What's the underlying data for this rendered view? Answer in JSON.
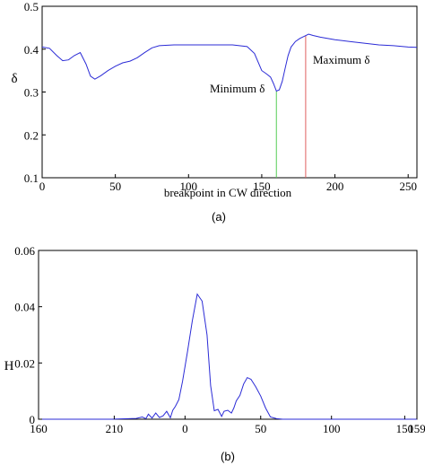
{
  "chart_data": [
    {
      "type": "line",
      "caption": "(a)",
      "xlabel": "breakpoint in CW direction",
      "ylabel": "δ",
      "xlim": [
        0,
        256
      ],
      "ylim": [
        0.1,
        0.5
      ],
      "xticks": [
        "0",
        "50",
        "100",
        "150",
        "200",
        "250"
      ],
      "xtick_values": [
        0,
        50,
        100,
        150,
        200,
        250
      ],
      "yticks": [
        "0.1",
        "0.2",
        "0.3",
        "0.4",
        "0.5"
      ],
      "ytick_values": [
        0.1,
        0.2,
        0.3,
        0.4,
        0.5
      ],
      "grid": false,
      "series": [
        {
          "color": "#2b2bd6",
          "x": [
            0,
            5,
            10,
            14,
            18,
            22,
            26,
            30,
            33,
            36,
            40,
            45,
            50,
            55,
            60,
            65,
            70,
            75,
            80,
            90,
            100,
            110,
            120,
            130,
            140,
            145,
            150,
            153,
            156,
            158,
            160,
            162,
            164,
            166,
            168,
            170,
            173,
            176,
            179,
            182,
            185,
            190,
            200,
            210,
            220,
            230,
            240,
            250,
            256
          ],
          "y": [
            0.405,
            0.402,
            0.385,
            0.373,
            0.375,
            0.385,
            0.392,
            0.365,
            0.337,
            0.33,
            0.338,
            0.35,
            0.36,
            0.368,
            0.372,
            0.38,
            0.392,
            0.403,
            0.408,
            0.41,
            0.41,
            0.41,
            0.41,
            0.41,
            0.406,
            0.39,
            0.35,
            0.343,
            0.335,
            0.32,
            0.302,
            0.305,
            0.325,
            0.355,
            0.385,
            0.405,
            0.418,
            0.425,
            0.43,
            0.435,
            0.432,
            0.428,
            0.422,
            0.418,
            0.414,
            0.41,
            0.408,
            0.405,
            0.404
          ]
        }
      ],
      "markers": [
        {
          "x": 160,
          "color": "#55cc55",
          "label": "Minimum δ"
        },
        {
          "x": 180,
          "color": "#e06060",
          "label": "Maximum δ"
        }
      ]
    },
    {
      "type": "line",
      "caption": "(b)",
      "xlabel": "",
      "ylabel": "H",
      "ylim": [
        0,
        0.06
      ],
      "xticks": [
        "160",
        "210",
        "0",
        "50",
        "100",
        "150",
        "159"
      ],
      "yticks": [
        "0",
        "0.02",
        "0.04",
        "0.06"
      ],
      "ytick_values": [
        0,
        0.02,
        0.04,
        0.06
      ],
      "grid": false,
      "series": [
        {
          "color": "#2b2bd6",
          "x": [
            0,
            20,
            40,
            60,
            80,
            85,
            88,
            90,
            93,
            96,
            99,
            102,
            105,
            108,
            110,
            112,
            115,
            118,
            122,
            126,
            130,
            134,
            138,
            141,
            144,
            147,
            150,
            152,
            155,
            158,
            160,
            162,
            165,
            168,
            171,
            174,
            178,
            182,
            186,
            190,
            195,
            200,
            210,
            220,
            230,
            240,
            250,
            260,
            270,
            280,
            290,
            300,
            310
          ],
          "y": [
            0,
            0,
            0,
            0,
            0.0003,
            0.0008,
            0.0002,
            0.0018,
            0.0004,
            0.0022,
            0.0006,
            0.0012,
            0.0028,
            0.0005,
            0.0032,
            0.0045,
            0.007,
            0.0135,
            0.024,
            0.035,
            0.0445,
            0.042,
            0.03,
            0.012,
            0.003,
            0.0035,
            0.001,
            0.0028,
            0.0032,
            0.0022,
            0.004,
            0.0065,
            0.0085,
            0.0125,
            0.0148,
            0.0142,
            0.0115,
            0.0082,
            0.004,
            0.0008,
            0.0002,
            0,
            0,
            0,
            0,
            0,
            0,
            0,
            0,
            0,
            0,
            0,
            0
          ]
        }
      ]
    }
  ]
}
